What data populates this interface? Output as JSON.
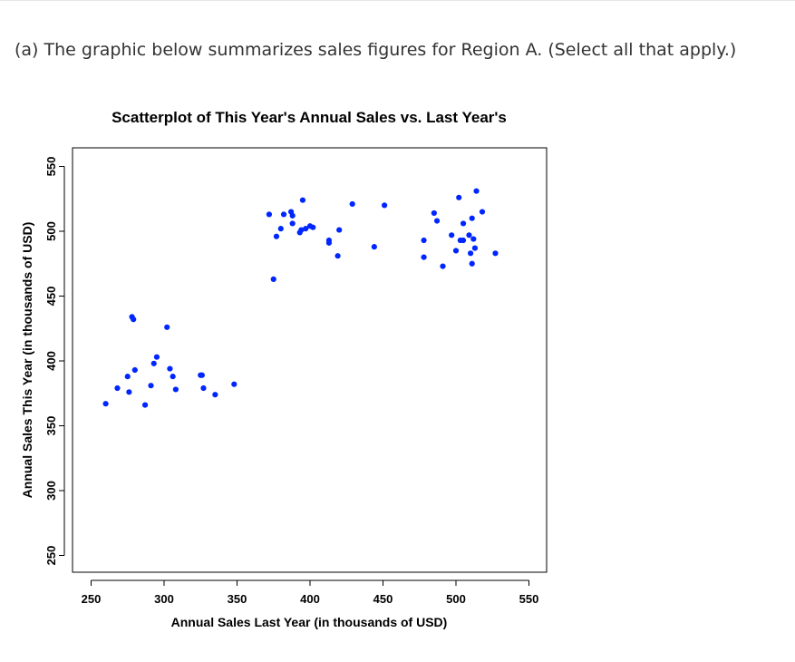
{
  "question": {
    "text": "(a) The graphic below summarizes sales figures for Region A. (Select all that apply.)"
  },
  "chart_data": {
    "type": "scatter",
    "title": "Scatterplot of This Year's Annual Sales vs. Last Year's",
    "xlabel": "Annual Sales Last Year (in thousands of USD)",
    "ylabel": "Annual Sales This Year (in thousands of USD)",
    "xlim": [
      240,
      560
    ],
    "ylim": [
      240,
      560
    ],
    "xticks": [
      250,
      300,
      350,
      400,
      450,
      500,
      550
    ],
    "yticks": [
      250,
      300,
      350,
      400,
      450,
      500,
      550
    ],
    "grid": false,
    "point_color": "#0026ff",
    "points": [
      {
        "x": 260,
        "y": 367
      },
      {
        "x": 268,
        "y": 379
      },
      {
        "x": 275,
        "y": 388
      },
      {
        "x": 276,
        "y": 376
      },
      {
        "x": 278,
        "y": 434
      },
      {
        "x": 279,
        "y": 432
      },
      {
        "x": 280,
        "y": 393
      },
      {
        "x": 287,
        "y": 366
      },
      {
        "x": 291,
        "y": 381
      },
      {
        "x": 293,
        "y": 398
      },
      {
        "x": 295,
        "y": 403
      },
      {
        "x": 302,
        "y": 426
      },
      {
        "x": 304,
        "y": 394
      },
      {
        "x": 306,
        "y": 388
      },
      {
        "x": 308,
        "y": 378
      },
      {
        "x": 325,
        "y": 389
      },
      {
        "x": 326,
        "y": 389
      },
      {
        "x": 327,
        "y": 379
      },
      {
        "x": 335,
        "y": 374
      },
      {
        "x": 348,
        "y": 382
      },
      {
        "x": 372,
        "y": 513
      },
      {
        "x": 375,
        "y": 463
      },
      {
        "x": 377,
        "y": 496
      },
      {
        "x": 380,
        "y": 502
      },
      {
        "x": 382,
        "y": 513
      },
      {
        "x": 387,
        "y": 515
      },
      {
        "x": 388,
        "y": 512
      },
      {
        "x": 388,
        "y": 506
      },
      {
        "x": 393,
        "y": 499
      },
      {
        "x": 394,
        "y": 501
      },
      {
        "x": 395,
        "y": 524
      },
      {
        "x": 397,
        "y": 502
      },
      {
        "x": 400,
        "y": 504
      },
      {
        "x": 402,
        "y": 503
      },
      {
        "x": 413,
        "y": 493
      },
      {
        "x": 413,
        "y": 491
      },
      {
        "x": 419,
        "y": 481
      },
      {
        "x": 420,
        "y": 501
      },
      {
        "x": 429,
        "y": 521
      },
      {
        "x": 444,
        "y": 488
      },
      {
        "x": 451,
        "y": 520
      },
      {
        "x": 478,
        "y": 493
      },
      {
        "x": 478,
        "y": 480
      },
      {
        "x": 485,
        "y": 514
      },
      {
        "x": 487,
        "y": 508
      },
      {
        "x": 491,
        "y": 473
      },
      {
        "x": 497,
        "y": 497
      },
      {
        "x": 500,
        "y": 485
      },
      {
        "x": 502,
        "y": 526
      },
      {
        "x": 503,
        "y": 493
      },
      {
        "x": 505,
        "y": 506
      },
      {
        "x": 505,
        "y": 493
      },
      {
        "x": 509,
        "y": 497
      },
      {
        "x": 510,
        "y": 483
      },
      {
        "x": 511,
        "y": 510
      },
      {
        "x": 511,
        "y": 475
      },
      {
        "x": 512,
        "y": 494
      },
      {
        "x": 513,
        "y": 487
      },
      {
        "x": 514,
        "y": 531
      },
      {
        "x": 518,
        "y": 515
      },
      {
        "x": 527,
        "y": 483
      }
    ]
  }
}
